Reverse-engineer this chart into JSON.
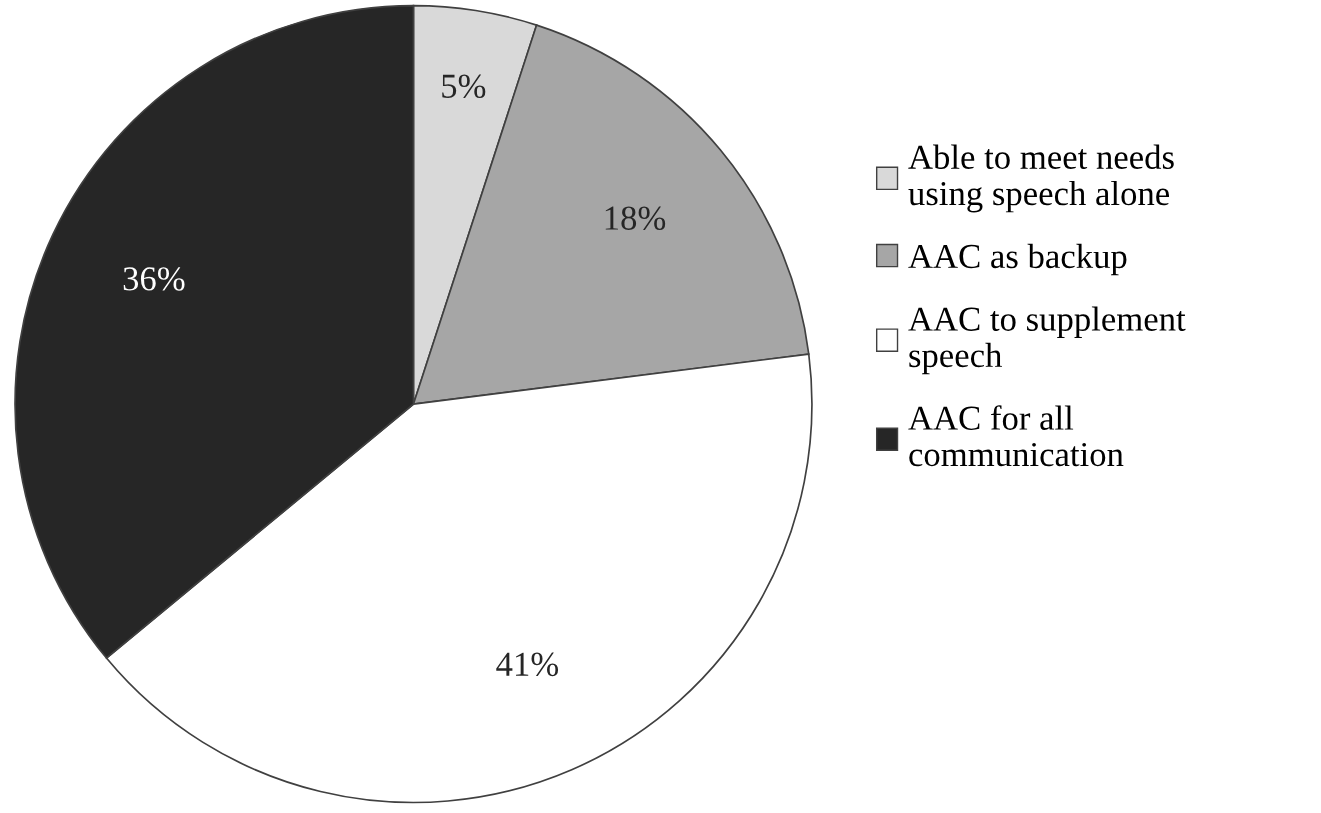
{
  "chart_data": {
    "type": "pie",
    "categories": [
      "Able to meet needs\nusing speech alone",
      "AAC as backup",
      "AAC to supplement\nspeech",
      "AAC for all\ncommunication"
    ],
    "values": [
      5,
      18,
      41,
      36
    ],
    "colors": [
      "#d9d9d9",
      "#a6a6a6",
      "#ffffff",
      "#262626"
    ],
    "value_labels": [
      "5%",
      "18%",
      "41%",
      "36%"
    ],
    "legend": "right"
  }
}
